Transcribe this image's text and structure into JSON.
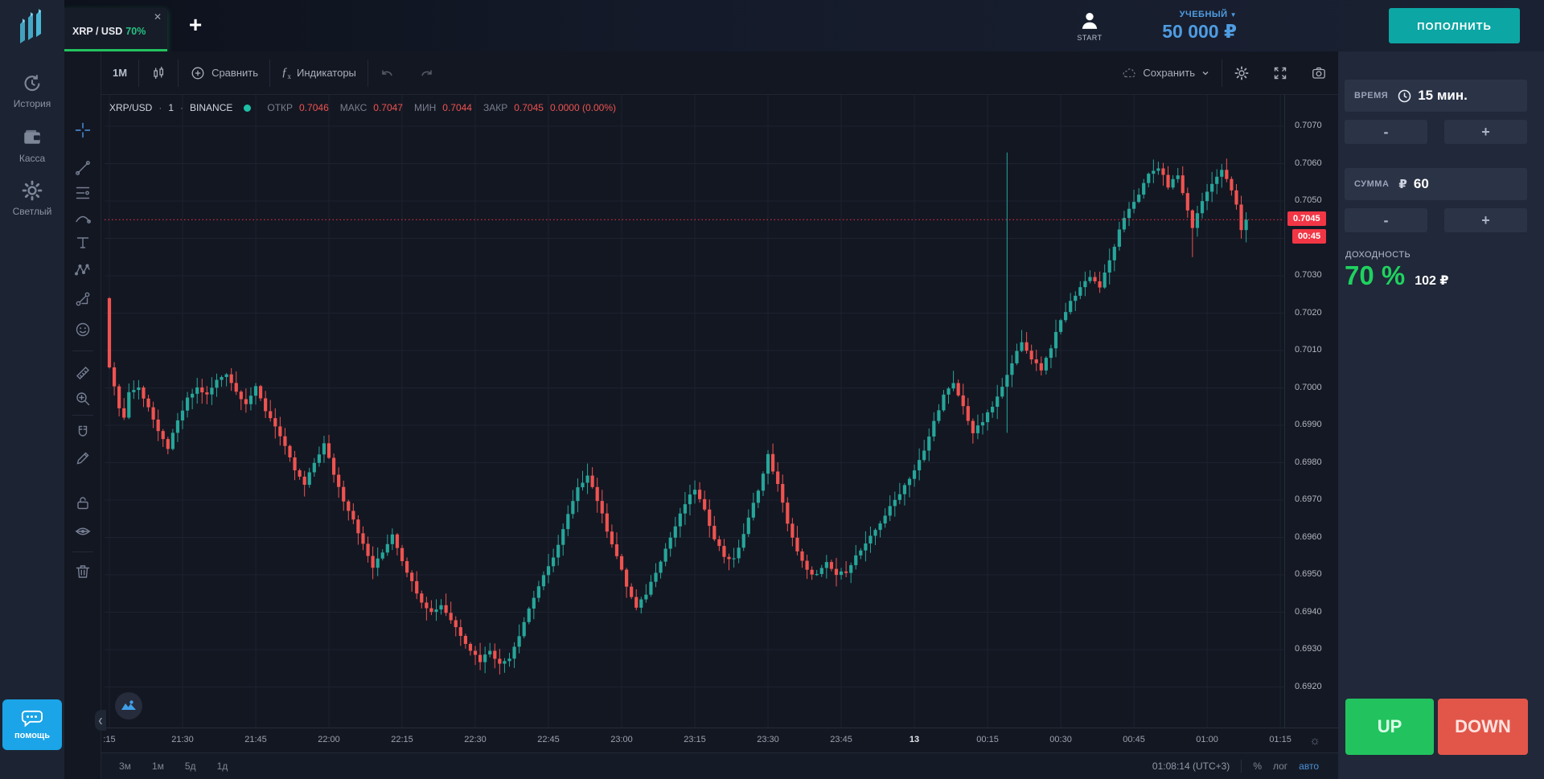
{
  "header": {
    "tab": {
      "symbol": "XRP / USD",
      "payout": "70%",
      "close": "✕"
    },
    "new_tab": "+",
    "account": {
      "avatar_label": "START",
      "type": "УЧЕБНЫЙ",
      "caret": "▼",
      "balance": "50 000 ₽"
    },
    "deposit_label": "ПОПОЛНИТЬ"
  },
  "sidebar": {
    "items": [
      {
        "icon": "history-icon",
        "label": "История"
      },
      {
        "icon": "wallet-icon",
        "label": "Касса"
      },
      {
        "icon": "theme-icon",
        "label": "Светлый"
      }
    ],
    "help_label": "помощь"
  },
  "toolbar": {
    "interval": "1М",
    "compare": "Сравнить",
    "indicators": "Индикаторы",
    "save": "Сохранить"
  },
  "legend": {
    "symbol": "XRP/USD",
    "sep": "·",
    "interval": "1",
    "exchange": "BINANCE",
    "open_label": "ОТКР",
    "open": "0.7046",
    "high_label": "МАКС",
    "high": "0.7047",
    "low_label": "МИН",
    "low": "0.7044",
    "close_label": "ЗАКР",
    "close": "0.7045",
    "change": "0.0000 (0.00%)"
  },
  "drawing_tools": [
    "crosshair",
    "trend-line",
    "fib-retracement",
    "curve",
    "text",
    "xabcd-pattern",
    "forecast",
    "emoji",
    "ruler",
    "zoom-in",
    "magnet",
    "drawing-mode",
    "lock-all",
    "hide-all",
    "remove-all"
  ],
  "panel": {
    "time_label": "ВРЕМЯ",
    "time_value": "15 мин.",
    "amount_label": "СУММА",
    "amount_currency": "₽",
    "amount_value": "60",
    "minus": "-",
    "plus": "+",
    "payout_label": "ДОХОДНОСТЬ",
    "payout_percent": "70 %",
    "payout_amount": "102 ₽",
    "up_label": "UP",
    "down_label": "DOWN"
  },
  "bottom_bar": {
    "ranges": [
      "3м",
      "1м",
      "5д",
      "1д"
    ],
    "clock": "01:08:14 (UTC+3)",
    "percent": "%",
    "log": "лог",
    "auto": "авто"
  },
  "chart_data": {
    "type": "candlestick",
    "symbol": "XRP/USD",
    "exchange": "BINANCE",
    "timeframe_minutes": 1,
    "ylim": [
      0.6909,
      0.7078
    ],
    "grid": true,
    "colors": {
      "up": "#26a69a",
      "down": "#ef5350",
      "price_line": "#f23645"
    },
    "price_axis_ticks": [
      "0.7070",
      "0.7060",
      "0.7050",
      "0.7040",
      "0.7030",
      "0.7020",
      "0.7010",
      "0.7000",
      "0.6990",
      "0.6980",
      "0.6970",
      "0.6960",
      "0.6950",
      "0.6940",
      "0.6930",
      "0.6920"
    ],
    "time_axis_ticks": [
      {
        "m": 0,
        "label": ":15"
      },
      {
        "m": 15,
        "label": "21:30"
      },
      {
        "m": 30,
        "label": "21:45"
      },
      {
        "m": 45,
        "label": "22:00"
      },
      {
        "m": 60,
        "label": "22:15"
      },
      {
        "m": 75,
        "label": "22:30"
      },
      {
        "m": 90,
        "label": "22:45"
      },
      {
        "m": 105,
        "label": "23:00"
      },
      {
        "m": 120,
        "label": "23:15"
      },
      {
        "m": 135,
        "label": "23:30"
      },
      {
        "m": 150,
        "label": "23:45"
      },
      {
        "m": 165,
        "label": "13",
        "strong": true
      },
      {
        "m": 180,
        "label": "00:15"
      },
      {
        "m": 195,
        "label": "00:30"
      },
      {
        "m": 210,
        "label": "00:45"
      },
      {
        "m": 225,
        "label": "01:00"
      },
      {
        "m": 240,
        "label": "01:15"
      }
    ],
    "price_line": {
      "value": 0.7045,
      "label": "0.7045",
      "countdown": "00:45"
    },
    "current_candle": {
      "open": 0.7046,
      "high": 0.7047,
      "low": 0.7044,
      "close": 0.7045
    },
    "first_open": 0.7024,
    "candle_count": 234,
    "anchors": [
      [
        0,
        0.7006
      ],
      [
        1,
        0.7
      ],
      [
        2,
        0.6995
      ],
      [
        3,
        0.6992
      ],
      [
        4,
        0.6999
      ],
      [
        6,
        0.7
      ],
      [
        8,
        0.6995
      ],
      [
        10,
        0.6988
      ],
      [
        12,
        0.6984
      ],
      [
        14,
        0.6991
      ],
      [
        16,
        0.6997
      ],
      [
        18,
        0.7
      ],
      [
        20,
        0.6998
      ],
      [
        22,
        0.7002
      ],
      [
        24,
        0.7004
      ],
      [
        26,
        0.6999
      ],
      [
        28,
        0.6996
      ],
      [
        30,
        0.7
      ],
      [
        32,
        0.6994
      ],
      [
        34,
        0.699
      ],
      [
        36,
        0.6984
      ],
      [
        38,
        0.6978
      ],
      [
        40,
        0.6974
      ],
      [
        42,
        0.698
      ],
      [
        44,
        0.6985
      ],
      [
        46,
        0.6977
      ],
      [
        48,
        0.697
      ],
      [
        50,
        0.6965
      ],
      [
        52,
        0.6958
      ],
      [
        54,
        0.6952
      ],
      [
        56,
        0.6956
      ],
      [
        58,
        0.6961
      ],
      [
        60,
        0.6954
      ],
      [
        62,
        0.6948
      ],
      [
        64,
        0.6943
      ],
      [
        66,
        0.694
      ],
      [
        68,
        0.6942
      ],
      [
        70,
        0.6938
      ],
      [
        72,
        0.6934
      ],
      [
        74,
        0.693
      ],
      [
        76,
        0.6927
      ],
      [
        78,
        0.693
      ],
      [
        80,
        0.6926
      ],
      [
        82,
        0.6928
      ],
      [
        84,
        0.6934
      ],
      [
        86,
        0.6941
      ],
      [
        88,
        0.6947
      ],
      [
        90,
        0.6952
      ],
      [
        92,
        0.6958
      ],
      [
        94,
        0.6966
      ],
      [
        96,
        0.6973
      ],
      [
        98,
        0.6977
      ],
      [
        100,
        0.697
      ],
      [
        102,
        0.6962
      ],
      [
        104,
        0.6955
      ],
      [
        106,
        0.6947
      ],
      [
        108,
        0.6941
      ],
      [
        110,
        0.6945
      ],
      [
        112,
        0.6951
      ],
      [
        114,
        0.6957
      ],
      [
        116,
        0.6963
      ],
      [
        118,
        0.6969
      ],
      [
        120,
        0.6973
      ],
      [
        122,
        0.6967
      ],
      [
        124,
        0.696
      ],
      [
        126,
        0.6955
      ],
      [
        128,
        0.6954
      ],
      [
        130,
        0.6961
      ],
      [
        132,
        0.6969
      ],
      [
        134,
        0.6977
      ],
      [
        135,
        0.6982
      ],
      [
        137,
        0.6974
      ],
      [
        139,
        0.6964
      ],
      [
        141,
        0.6956
      ],
      [
        143,
        0.6951
      ],
      [
        145,
        0.695
      ],
      [
        147,
        0.6953
      ],
      [
        149,
        0.695
      ],
      [
        151,
        0.6951
      ],
      [
        153,
        0.6955
      ],
      [
        155,
        0.6958
      ],
      [
        157,
        0.6962
      ],
      [
        159,
        0.6966
      ],
      [
        161,
        0.697
      ],
      [
        163,
        0.6974
      ],
      [
        165,
        0.6978
      ],
      [
        167,
        0.6983
      ],
      [
        169,
        0.6991
      ],
      [
        171,
        0.6998
      ],
      [
        173,
        0.7001
      ],
      [
        175,
        0.6995
      ],
      [
        177,
        0.6988
      ],
      [
        179,
        0.6991
      ],
      [
        181,
        0.6995
      ],
      [
        183,
        0.7
      ],
      [
        184,
        0.7004
      ],
      [
        185,
        0.7007
      ],
      [
        187,
        0.7012
      ],
      [
        189,
        0.7008
      ],
      [
        191,
        0.7005
      ],
      [
        193,
        0.7011
      ],
      [
        195,
        0.7018
      ],
      [
        197,
        0.7023
      ],
      [
        199,
        0.7027
      ],
      [
        201,
        0.703
      ],
      [
        203,
        0.7027
      ],
      [
        205,
        0.7034
      ],
      [
        207,
        0.7042
      ],
      [
        209,
        0.7048
      ],
      [
        211,
        0.7052
      ],
      [
        213,
        0.7057
      ],
      [
        215,
        0.7059
      ],
      [
        217,
        0.7054
      ],
      [
        219,
        0.7057
      ],
      [
        220,
        0.7052
      ],
      [
        222,
        0.7043
      ],
      [
        224,
        0.705
      ],
      [
        226,
        0.7055
      ],
      [
        228,
        0.7058
      ],
      [
        229,
        0.7056
      ],
      [
        231,
        0.7049
      ],
      [
        232,
        0.7042
      ],
      [
        233,
        0.7045
      ]
    ],
    "wick_events": [
      {
        "m": 184,
        "high": 0.7063,
        "low": 0.6988
      },
      {
        "m": 222,
        "low": 0.7035
      }
    ],
    "axis_settings_icon": "☼"
  }
}
